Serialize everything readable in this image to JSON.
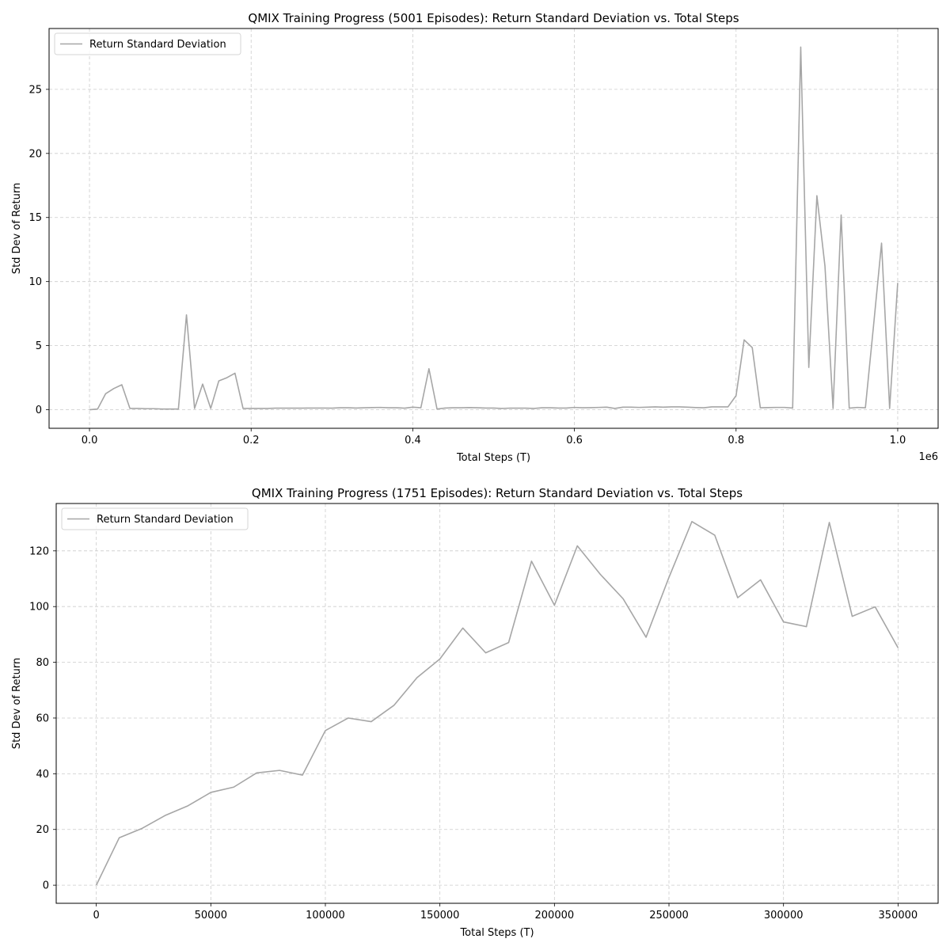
{
  "chart_data": [
    {
      "type": "line",
      "title": "QMIX Training Progress (5001 Episodes): Return Standard Deviation vs. Total Steps",
      "xlabel": "Total Steps (T)",
      "ylabel": "Std Dev of Return",
      "x_multiplier_label": "1e6",
      "xlim": [
        -50000,
        1050000
      ],
      "ylim": [
        -1.45,
        29.75
      ],
      "x_ticks": [
        0,
        200000,
        400000,
        600000,
        800000,
        1000000
      ],
      "x_tick_labels": [
        "0.0",
        "0.2",
        "0.4",
        "0.6",
        "0.8",
        "1.0"
      ],
      "y_ticks": [
        0,
        5,
        10,
        15,
        20,
        25
      ],
      "y_tick_labels": [
        "0",
        "5",
        "10",
        "15",
        "20",
        "25"
      ],
      "grid": true,
      "legend_position": "upper-left",
      "colors": {
        "line": "#a6a6a6",
        "grid": "#cccccc"
      },
      "series": [
        {
          "name": "Return Standard Deviation",
          "x": [
            0,
            10000,
            20000,
            30000,
            40000,
            50000,
            60000,
            70000,
            80000,
            90000,
            100000,
            110000,
            120000,
            130000,
            140000,
            150000,
            160000,
            170000,
            180000,
            190000,
            200000,
            210000,
            220000,
            230000,
            240000,
            250000,
            260000,
            270000,
            280000,
            290000,
            300000,
            310000,
            320000,
            330000,
            340000,
            350000,
            360000,
            370000,
            380000,
            390000,
            400000,
            410000,
            420000,
            430000,
            440000,
            450000,
            460000,
            470000,
            480000,
            490000,
            500000,
            510000,
            520000,
            530000,
            540000,
            550000,
            560000,
            570000,
            580000,
            590000,
            600000,
            610000,
            620000,
            630000,
            640000,
            650000,
            660000,
            670000,
            680000,
            690000,
            700000,
            710000,
            720000,
            730000,
            740000,
            750000,
            760000,
            770000,
            780000,
            790000,
            800000,
            810000,
            820000,
            830000,
            840000,
            850000,
            860000,
            870000,
            880000,
            890000,
            900000,
            910000,
            920000,
            930000,
            940000,
            950000,
            960000,
            970000,
            980000,
            990000,
            1000000
          ],
          "values": [
            0.0,
            0.05,
            1.25,
            1.65,
            1.95,
            0.1,
            0.1,
            0.08,
            0.08,
            0.05,
            0.05,
            0.05,
            7.4,
            0.1,
            2.0,
            0.1,
            2.25,
            2.5,
            2.85,
            0.1,
            0.1,
            0.1,
            0.1,
            0.12,
            0.12,
            0.12,
            0.12,
            0.13,
            0.13,
            0.13,
            0.12,
            0.15,
            0.15,
            0.13,
            0.15,
            0.17,
            0.18,
            0.15,
            0.15,
            0.12,
            0.2,
            0.15,
            3.2,
            0.05,
            0.13,
            0.15,
            0.15,
            0.17,
            0.15,
            0.13,
            0.13,
            0.1,
            0.12,
            0.12,
            0.12,
            0.1,
            0.15,
            0.15,
            0.13,
            0.13,
            0.18,
            0.15,
            0.16,
            0.18,
            0.2,
            0.1,
            0.2,
            0.2,
            0.18,
            0.2,
            0.22,
            0.2,
            0.22,
            0.22,
            0.2,
            0.17,
            0.15,
            0.22,
            0.22,
            0.22,
            1.1,
            5.45,
            4.85,
            0.15,
            0.17,
            0.18,
            0.18,
            0.13,
            28.3,
            3.3,
            16.7,
            11.2,
            0.1,
            15.2,
            0.12,
            0.18,
            0.15,
            6.5,
            13.0,
            0.1,
            9.9
          ]
        }
      ]
    },
    {
      "type": "line",
      "title": "QMIX Training Progress (1751 Episodes): Return Standard Deviation vs. Total Steps",
      "xlabel": "Total Steps (T)",
      "ylabel": "Std Dev of Return",
      "xlim": [
        -17500,
        367500
      ],
      "ylim": [
        -6.5,
        137.0
      ],
      "x_ticks": [
        0,
        50000,
        100000,
        150000,
        200000,
        250000,
        300000,
        350000
      ],
      "x_tick_labels": [
        "0",
        "50000",
        "100000",
        "150000",
        "200000",
        "250000",
        "300000",
        "350000"
      ],
      "y_ticks": [
        0,
        20,
        40,
        60,
        80,
        100,
        120
      ],
      "y_tick_labels": [
        "0",
        "20",
        "40",
        "60",
        "80",
        "100",
        "120"
      ],
      "grid": true,
      "legend_position": "upper-left",
      "colors": {
        "line": "#a6a6a6",
        "grid": "#cccccc"
      },
      "series": [
        {
          "name": "Return Standard Deviation",
          "x": [
            0,
            10000,
            20000,
            30000,
            40000,
            50000,
            60000,
            70000,
            80000,
            90000,
            100000,
            110000,
            120000,
            130000,
            140000,
            150000,
            160000,
            170000,
            180000,
            190000,
            200000,
            210000,
            220000,
            230000,
            240000,
            250000,
            260000,
            270000,
            280000,
            290000,
            300000,
            310000,
            320000,
            330000,
            340000,
            350000
          ],
          "values": [
            0,
            17.0,
            20.4,
            25.0,
            28.5,
            33.3,
            35.2,
            40.3,
            41.2,
            39.5,
            55.5,
            60.0,
            58.7,
            64.6,
            74.5,
            81.2,
            92.3,
            83.4,
            87.1,
            116.3,
            100.5,
            121.8,
            111.6,
            102.8,
            89.0,
            110.5,
            130.5,
            125.6,
            103.2,
            109.6,
            94.5,
            92.8,
            130.2,
            96.5,
            99.9,
            85.2
          ]
        }
      ]
    }
  ]
}
